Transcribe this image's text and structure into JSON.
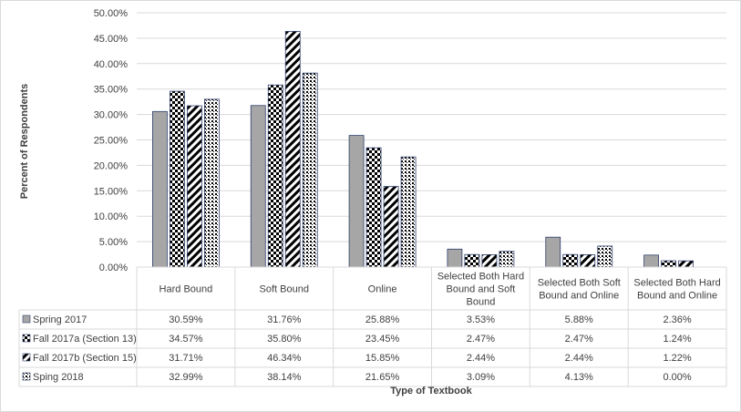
{
  "chart_data": {
    "type": "bar",
    "xlabel": "Type of Textbook",
    "ylabel": "Percent of Respondents",
    "ylim": [
      0,
      50
    ],
    "y_tick_step": 5,
    "y_tick_format": "percent_2dp",
    "grid": true,
    "legend": "data-table",
    "categories": [
      [
        "Hard Bound"
      ],
      [
        "Soft Bound"
      ],
      [
        "Online"
      ],
      [
        "Selected Both Hard",
        "Bound and Soft",
        "Bound"
      ],
      [
        "Selected Both Soft",
        "Bound and Online"
      ],
      [
        "Selected Both Hard",
        "Bound and Online"
      ]
    ],
    "series": [
      {
        "name": "Spring 2017",
        "pattern": "solid-gray",
        "values": [
          30.59,
          31.76,
          25.88,
          3.53,
          5.88,
          2.36
        ],
        "labels": [
          "30.59%",
          "31.76%",
          "25.88%",
          "3.53%",
          "5.88%",
          "2.36%"
        ]
      },
      {
        "name": "Fall 2017a (Section 13)",
        "pattern": "checkerboard",
        "values": [
          34.57,
          35.8,
          23.45,
          2.47,
          2.47,
          1.24
        ],
        "labels": [
          "34.57%",
          "35.80%",
          "23.45%",
          "2.47%",
          "2.47%",
          "1.24%"
        ]
      },
      {
        "name": "Fall 2017b (Section 15)",
        "pattern": "diagonal-stripes",
        "values": [
          31.71,
          46.34,
          15.85,
          2.44,
          2.44,
          1.22
        ],
        "labels": [
          "31.71%",
          "46.34%",
          "15.85%",
          "2.44%",
          "2.44%",
          "1.22%"
        ]
      },
      {
        "name": "Sping 2018",
        "pattern": "dots",
        "values": [
          32.99,
          38.14,
          21.65,
          3.09,
          4.13,
          0.0
        ],
        "labels": [
          "32.99%",
          "38.14%",
          "21.65%",
          "3.09%",
          "4.13%",
          "0.00%"
        ]
      }
    ]
  },
  "colors": {
    "bar_gray": "#a6a6a6",
    "pattern_dark": "#000000",
    "axis_text": "#404040",
    "grid": "#d9d9d9",
    "border": "#4472c4"
  }
}
